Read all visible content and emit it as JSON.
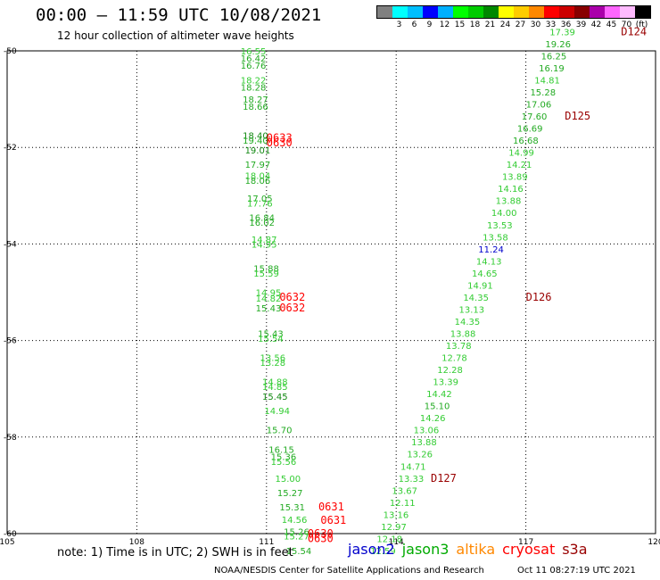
{
  "header": {
    "title": "00:00 – 11:59 UTC 10/08/2021",
    "subtitle": "12 hour collection of altimeter wave heights"
  },
  "colorbar": {
    "swatches": [
      {
        "label": "",
        "color": "#808080"
      },
      {
        "label": "3",
        "color": "#00ffff"
      },
      {
        "label": "6",
        "color": "#00bfff"
      },
      {
        "label": "9",
        "color": "#0000ff"
      },
      {
        "label": "12",
        "color": "#00b0ff"
      },
      {
        "label": "15",
        "color": "#00ff00"
      },
      {
        "label": "18",
        "color": "#00cc00"
      },
      {
        "label": "21",
        "color": "#008800"
      },
      {
        "label": "24",
        "color": "#ffff00"
      },
      {
        "label": "27",
        "color": "#ffcc00"
      },
      {
        "label": "30",
        "color": "#ff8800"
      },
      {
        "label": "33",
        "color": "#ff0000"
      },
      {
        "label": "36",
        "color": "#cc0000"
      },
      {
        "label": "39",
        "color": "#880000"
      },
      {
        "label": "42",
        "color": "#aa00aa"
      },
      {
        "label": "45",
        "color": "#ff66ff"
      },
      {
        "label": "70",
        "color": "#ffbbff"
      },
      {
        "label": "(ft)",
        "color": "#000000"
      }
    ]
  },
  "axes": {
    "lon_ticks": [
      "105",
      "108",
      "111",
      "114",
      "117",
      "120"
    ],
    "lat_ticks": [
      "-50",
      "-52",
      "-54",
      "-56",
      "-58",
      "-60"
    ]
  },
  "chart_data": {
    "type": "scatter",
    "xlim": [
      105,
      120
    ],
    "ylim": [
      -60,
      -50
    ],
    "grid": true,
    "colors": {
      "lt": "#33cc33",
      "md": "#22aa22",
      "dk": "#118811",
      "blue": "#0000cc",
      "red": "#ff0000",
      "dred": "#990000"
    },
    "observations": [
      {
        "lon": 110.4,
        "lat": -50.0,
        "text": "16.55",
        "c": "lt"
      },
      {
        "lon": 110.4,
        "lat": -50.15,
        "text": "16.42",
        "c": "md"
      },
      {
        "lon": 110.4,
        "lat": -50.3,
        "text": "16.76",
        "c": "md"
      },
      {
        "lon": 110.4,
        "lat": -50.6,
        "text": "18.22",
        "c": "lt"
      },
      {
        "lon": 110.4,
        "lat": -50.75,
        "text": "18.28",
        "c": "md"
      },
      {
        "lon": 110.45,
        "lat": -51.0,
        "text": "18.27",
        "c": "md"
      },
      {
        "lon": 110.45,
        "lat": -51.15,
        "text": "18.66",
        "c": "md"
      },
      {
        "lon": 110.45,
        "lat": -51.75,
        "text": "18.40",
        "c": "dk"
      },
      {
        "lon": 110.45,
        "lat": -51.85,
        "text": "19.40",
        "c": "md"
      },
      {
        "lon": 110.5,
        "lat": -52.05,
        "text": "19.01",
        "c": "dk"
      },
      {
        "lon": 110.5,
        "lat": -52.35,
        "text": "17.97",
        "c": "md"
      },
      {
        "lon": 110.5,
        "lat": -52.58,
        "text": "18.04",
        "c": "lt"
      },
      {
        "lon": 110.5,
        "lat": -52.68,
        "text": "18.06",
        "c": "md"
      },
      {
        "lon": 110.55,
        "lat": -53.05,
        "text": "17.05",
        "c": "md"
      },
      {
        "lon": 110.55,
        "lat": -53.15,
        "text": "17.76",
        "c": "lt"
      },
      {
        "lon": 110.6,
        "lat": -53.45,
        "text": "16.84",
        "c": "md"
      },
      {
        "lon": 110.6,
        "lat": -53.55,
        "text": "16.02",
        "c": "md"
      },
      {
        "lon": 110.65,
        "lat": -53.9,
        "text": "14.87",
        "c": "lt"
      },
      {
        "lon": 110.65,
        "lat": -54.0,
        "text": "14.95",
        "c": "lt"
      },
      {
        "lon": 110.7,
        "lat": -54.5,
        "text": "15.88",
        "c": "md"
      },
      {
        "lon": 110.7,
        "lat": -54.6,
        "text": "15.59",
        "c": "lt"
      },
      {
        "lon": 110.75,
        "lat": -55.0,
        "text": "14.95",
        "c": "lt"
      },
      {
        "lon": 110.75,
        "lat": -55.12,
        "text": "14.82",
        "c": "lt"
      },
      {
        "lon": 110.75,
        "lat": -55.32,
        "text": "15.43",
        "c": "md"
      },
      {
        "lon": 110.8,
        "lat": -55.85,
        "text": "15.43",
        "c": "md"
      },
      {
        "lon": 110.8,
        "lat": -55.95,
        "text": "15.54",
        "c": "lt"
      },
      {
        "lon": 110.85,
        "lat": -56.35,
        "text": "13.56",
        "c": "lt"
      },
      {
        "lon": 110.85,
        "lat": -56.45,
        "text": "13.28",
        "c": "lt"
      },
      {
        "lon": 110.9,
        "lat": -56.85,
        "text": "14.88",
        "c": "lt"
      },
      {
        "lon": 110.9,
        "lat": -56.95,
        "text": "14.85",
        "c": "lt"
      },
      {
        "lon": 110.9,
        "lat": -57.15,
        "text": "15.45",
        "c": "dk"
      },
      {
        "lon": 110.95,
        "lat": -57.45,
        "text": "14.94",
        "c": "lt"
      },
      {
        "lon": 111.0,
        "lat": -57.85,
        "text": "15.70",
        "c": "md"
      },
      {
        "lon": 111.05,
        "lat": -58.25,
        "text": "16.15",
        "c": "md"
      },
      {
        "lon": 111.1,
        "lat": -58.4,
        "text": "15.36",
        "c": "md"
      },
      {
        "lon": 111.1,
        "lat": -58.5,
        "text": "15.56",
        "c": "lt"
      },
      {
        "lon": 111.2,
        "lat": -58.85,
        "text": "15.00",
        "c": "lt"
      },
      {
        "lon": 111.25,
        "lat": -59.15,
        "text": "15.27",
        "c": "md"
      },
      {
        "lon": 111.3,
        "lat": -59.45,
        "text": "15.31",
        "c": "md"
      },
      {
        "lon": 111.35,
        "lat": -59.7,
        "text": "14.56",
        "c": "lt"
      },
      {
        "lon": 111.4,
        "lat": -59.95,
        "text": "15.26",
        "c": "md"
      },
      {
        "lon": 111.4,
        "lat": -60.05,
        "text": "15.27",
        "c": "lt"
      },
      {
        "lon": 111.45,
        "lat": -60.35,
        "text": "15.54",
        "c": "md"
      },
      {
        "lon": 113.4,
        "lat": -60.35,
        "text": "12.59",
        "c": "lt"
      },
      {
        "lon": 113.55,
        "lat": -60.1,
        "text": "12.18",
        "c": "lt"
      },
      {
        "lon": 113.65,
        "lat": -59.85,
        "text": "12.97",
        "c": "lt"
      },
      {
        "lon": 113.7,
        "lat": -59.6,
        "text": "13.16",
        "c": "lt"
      },
      {
        "lon": 113.85,
        "lat": -59.35,
        "text": "12.11",
        "c": "lt"
      },
      {
        "lon": 113.9,
        "lat": -59.1,
        "text": "13.67",
        "c": "lt"
      },
      {
        "lon": 114.05,
        "lat": -58.85,
        "text": "13.33",
        "c": "lt"
      },
      {
        "lon": 114.1,
        "lat": -58.6,
        "text": "14.71",
        "c": "lt"
      },
      {
        "lon": 114.25,
        "lat": -58.35,
        "text": "13.26",
        "c": "lt"
      },
      {
        "lon": 114.35,
        "lat": -58.1,
        "text": "13.88",
        "c": "lt"
      },
      {
        "lon": 114.4,
        "lat": -57.85,
        "text": "13.06",
        "c": "lt"
      },
      {
        "lon": 114.55,
        "lat": -57.6,
        "text": "14.26",
        "c": "lt"
      },
      {
        "lon": 114.65,
        "lat": -57.35,
        "text": "15.10",
        "c": "md"
      },
      {
        "lon": 114.7,
        "lat": -57.1,
        "text": "14.42",
        "c": "lt"
      },
      {
        "lon": 114.85,
        "lat": -56.85,
        "text": "13.39",
        "c": "lt"
      },
      {
        "lon": 114.95,
        "lat": -56.6,
        "text": "12.28",
        "c": "lt"
      },
      {
        "lon": 115.05,
        "lat": -56.35,
        "text": "12.78",
        "c": "lt"
      },
      {
        "lon": 115.15,
        "lat": -56.1,
        "text": "13.78",
        "c": "lt"
      },
      {
        "lon": 115.25,
        "lat": -55.85,
        "text": "13.88",
        "c": "lt"
      },
      {
        "lon": 115.35,
        "lat": -55.6,
        "text": "14.35",
        "c": "lt"
      },
      {
        "lon": 115.45,
        "lat": -55.35,
        "text": "13.13",
        "c": "lt"
      },
      {
        "lon": 115.55,
        "lat": -55.1,
        "text": "14.35",
        "c": "lt"
      },
      {
        "lon": 115.65,
        "lat": -54.85,
        "text": "14.91",
        "c": "lt"
      },
      {
        "lon": 115.75,
        "lat": -54.6,
        "text": "14.65",
        "c": "lt"
      },
      {
        "lon": 115.85,
        "lat": -54.35,
        "text": "14.13",
        "c": "lt"
      },
      {
        "lon": 115.9,
        "lat": -54.1,
        "text": "11.24",
        "c": "blue"
      },
      {
        "lon": 116.0,
        "lat": -53.85,
        "text": "13.58",
        "c": "lt"
      },
      {
        "lon": 116.1,
        "lat": -53.6,
        "text": "13.53",
        "c": "lt"
      },
      {
        "lon": 116.2,
        "lat": -53.35,
        "text": "14.00",
        "c": "lt"
      },
      {
        "lon": 116.3,
        "lat": -53.1,
        "text": "13.88",
        "c": "lt"
      },
      {
        "lon": 116.35,
        "lat": -52.85,
        "text": "14.16",
        "c": "lt"
      },
      {
        "lon": 116.45,
        "lat": -52.6,
        "text": "13.89",
        "c": "lt"
      },
      {
        "lon": 116.55,
        "lat": -52.35,
        "text": "14.21",
        "c": "lt"
      },
      {
        "lon": 116.6,
        "lat": -52.1,
        "text": "14.99",
        "c": "lt"
      },
      {
        "lon": 116.7,
        "lat": -51.85,
        "text": "16.68",
        "c": "md"
      },
      {
        "lon": 116.8,
        "lat": -51.6,
        "text": "16.69",
        "c": "md"
      },
      {
        "lon": 116.9,
        "lat": -51.35,
        "text": "17.60",
        "c": "md"
      },
      {
        "lon": 117.0,
        "lat": -51.1,
        "text": "17.06",
        "c": "md"
      },
      {
        "lon": 117.1,
        "lat": -50.85,
        "text": "15.28",
        "c": "md"
      },
      {
        "lon": 117.2,
        "lat": -50.6,
        "text": "14.81",
        "c": "lt"
      },
      {
        "lon": 117.3,
        "lat": -50.35,
        "text": "16.19",
        "c": "md"
      },
      {
        "lon": 117.35,
        "lat": -50.1,
        "text": "16.25",
        "c": "md"
      },
      {
        "lon": 117.45,
        "lat": -49.85,
        "text": "19.26",
        "c": "md"
      },
      {
        "lon": 117.55,
        "lat": -49.6,
        "text": "17.39",
        "c": "lt"
      }
    ],
    "passes": [
      {
        "lon": 111.0,
        "lat": -51.8,
        "text": "0633",
        "c": "red"
      },
      {
        "lon": 111.0,
        "lat": -51.9,
        "text": "0630",
        "c": "red"
      },
      {
        "lon": 111.3,
        "lat": -55.1,
        "text": "0632",
        "c": "red"
      },
      {
        "lon": 111.3,
        "lat": -55.32,
        "text": "0632",
        "c": "red"
      },
      {
        "lon": 112.2,
        "lat": -59.45,
        "text": "0631",
        "c": "red"
      },
      {
        "lon": 112.25,
        "lat": -59.72,
        "text": "0631",
        "c": "red"
      },
      {
        "lon": 111.95,
        "lat": -60.0,
        "text": "0630",
        "c": "red"
      },
      {
        "lon": 111.95,
        "lat": -60.1,
        "text": "0630",
        "c": "red"
      },
      {
        "lon": 119.2,
        "lat": -49.6,
        "text": "D124",
        "c": "dred"
      },
      {
        "lon": 117.9,
        "lat": -51.35,
        "text": "D125",
        "c": "dred"
      },
      {
        "lon": 117.0,
        "lat": -55.1,
        "text": "D126",
        "c": "dred"
      },
      {
        "lon": 114.8,
        "lat": -58.85,
        "text": "D127",
        "c": "dred"
      }
    ]
  },
  "note": "note:  1) Time is in UTC;  2) SWH is in feet",
  "legend": [
    {
      "label": "jason2",
      "color": "#0000cc"
    },
    {
      "label": "jason3",
      "color": "#00aa00"
    },
    {
      "label": "altika",
      "color": "#ff8800"
    },
    {
      "label": "cryosat",
      "color": "#ff0000"
    },
    {
      "label": "s3a",
      "color": "#990000"
    }
  ],
  "footer": {
    "agency": "NOAA/NESDIS Center for Satellite Applications and Research",
    "timestamp": "Oct 11 08:27:19 UTC 2021"
  }
}
